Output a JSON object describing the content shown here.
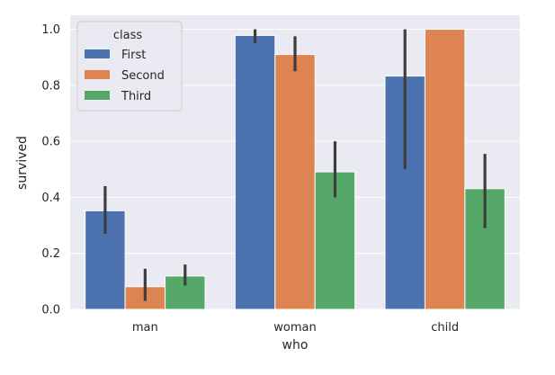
{
  "chart_data": {
    "type": "bar",
    "xlabel": "who",
    "ylabel": "survived",
    "categories": [
      "man",
      "woman",
      "child"
    ],
    "ylim": [
      0,
      1.05
    ],
    "yticks": [
      "0.0",
      "0.2",
      "0.4",
      "0.6",
      "0.8",
      "1.0"
    ],
    "grid": true,
    "legend": {
      "title": "class",
      "placement": "top-left"
    },
    "series": [
      {
        "name": "First",
        "color": "#4c72b0",
        "values": [
          0.352,
          0.978,
          0.833
        ],
        "ci_low": [
          0.27,
          0.95,
          0.5
        ],
        "ci_high": [
          0.44,
          1.0,
          1.0
        ]
      },
      {
        "name": "Second",
        "color": "#dd8452",
        "values": [
          0.081,
          0.91,
          1.0
        ],
        "ci_low": [
          0.03,
          0.85,
          1.0
        ],
        "ci_high": [
          0.145,
          0.975,
          1.0
        ]
      },
      {
        "name": "Third",
        "color": "#55a868",
        "values": [
          0.119,
          0.491,
          0.431
        ],
        "ci_low": [
          0.085,
          0.4,
          0.29
        ],
        "ci_high": [
          0.16,
          0.6,
          0.555
        ]
      }
    ]
  }
}
